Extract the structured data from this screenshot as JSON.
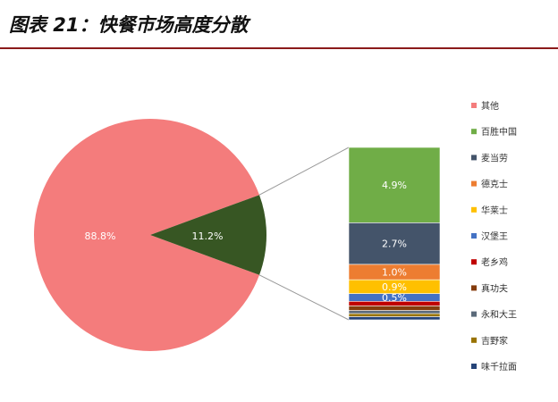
{
  "chart_data": {
    "type": "bar-of-pie",
    "title": "图表 21：快餐市场高度分散",
    "pie": {
      "categories": [
        "其他",
        null
      ],
      "values": [
        88.8,
        11.2
      ],
      "value_labels": [
        "88.8%",
        "11.2%"
      ],
      "colors": [
        "#f47c7c",
        "#375623"
      ]
    },
    "series": [
      {
        "name": "百胜中国",
        "color": "#70ad47",
        "values": [
          4.9
        ],
        "value_labels": [
          "4.9%"
        ]
      },
      {
        "name": "麦当劳",
        "color": "#44546a",
        "values": [
          2.7
        ],
        "value_labels": [
          "2.7%"
        ]
      },
      {
        "name": "德克士",
        "color": "#ed7d31",
        "values": [
          1.0
        ],
        "value_labels": [
          "1.0%"
        ]
      },
      {
        "name": "华莱士",
        "color": "#ffc000",
        "values": [
          0.9
        ],
        "value_labels": [
          "0.9%"
        ]
      },
      {
        "name": "汉堡王",
        "color": "#4472c4",
        "values": [
          0.5
        ],
        "value_labels": [
          "0.5%"
        ]
      },
      {
        "name": "老乡鸡",
        "color": "#c00000",
        "values": [
          0.3
        ]
      },
      {
        "name": "真功夫",
        "color": "#843c0c",
        "values": [
          0.3
        ]
      },
      {
        "name": "永和大王",
        "color": "#5b6a7a",
        "values": [
          0.2
        ]
      },
      {
        "name": "吉野家",
        "color": "#997300",
        "values": [
          0.2
        ]
      },
      {
        "name": "味千拉面",
        "color": "#264478",
        "values": [
          0.2
        ]
      }
    ]
  }
}
